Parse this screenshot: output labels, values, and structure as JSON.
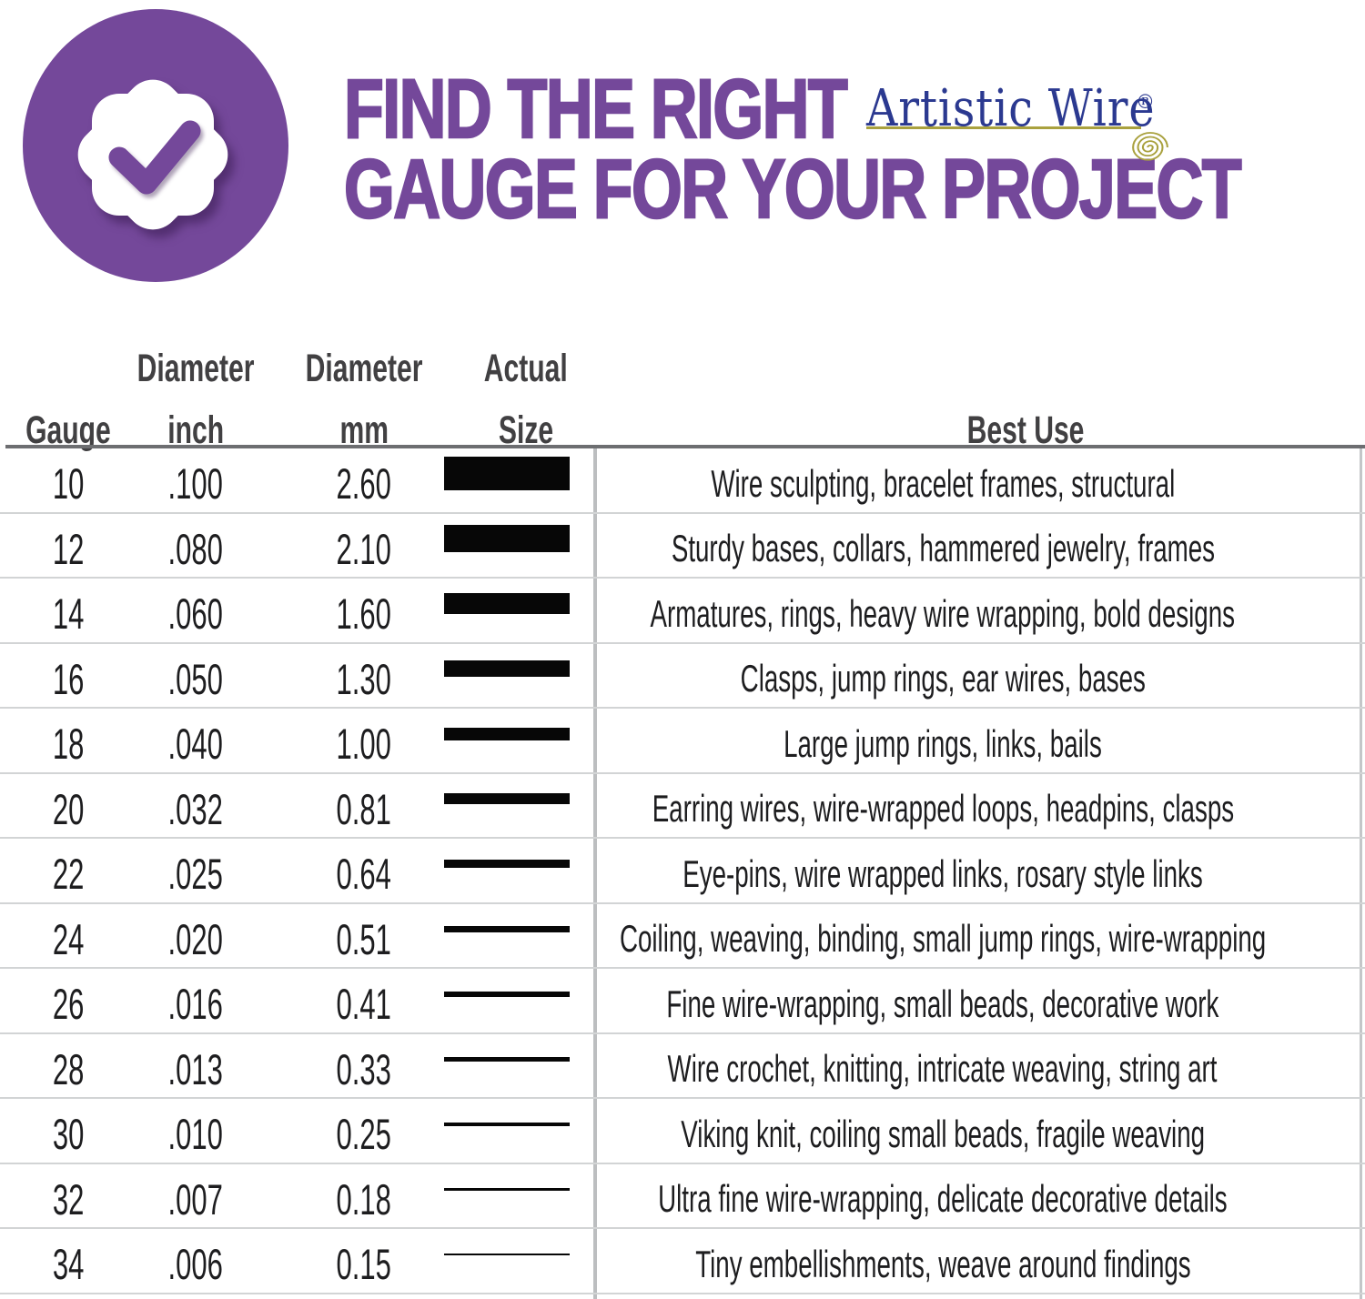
{
  "header": {
    "title_line1": "FIND THE RIGHT",
    "title_line2": "GAUGE FOR YOUR PROJECT",
    "brand_name": "Artistic Wire",
    "brand_registered": "®",
    "badge_icon": "check-seal-icon",
    "spiral_icon": "wire-spiral-icon"
  },
  "colors": {
    "accent_purple": "#74489A",
    "badge_shadow": "#371A4E",
    "brand_navy": "#2B3990",
    "brand_gold": "#A9A13E",
    "bar_black": "#070707",
    "header_text": "#414042",
    "body_text": "#1d1d1f",
    "rule_dark": "#6d6e71",
    "rule_light": "#d2d4d5",
    "column_divider": "#bcbec0"
  },
  "table": {
    "header_row1": {
      "inch": "Diameter",
      "mm": "Diameter",
      "size": "Actual"
    },
    "header_row2": {
      "gauge": "Gauge",
      "inch": "inch",
      "mm": "mm",
      "size": "Size",
      "best_use": "Best Use"
    }
  },
  "chart_data": {
    "type": "table",
    "title": "Find the Right Gauge for Your Project",
    "columns": [
      "Gauge",
      "Diameter inch",
      "Diameter mm",
      "Actual Size",
      "Best Use"
    ],
    "size_bar_note": "Actual Size column shows a solid black bar whose thickness is proportional to the wire diameter in mm (approx 14.2 px per mm), constant width",
    "rows": [
      {
        "gauge": "10",
        "inch": ".100",
        "mm": "2.60",
        "mm_value": 2.6,
        "best_use": "Wire sculpting, bracelet frames, structural"
      },
      {
        "gauge": "12",
        "inch": ".080",
        "mm": "2.10",
        "mm_value": 2.1,
        "best_use": "Sturdy bases, collars, hammered jewelry, frames"
      },
      {
        "gauge": "14",
        "inch": ".060",
        "mm": "1.60",
        "mm_value": 1.6,
        "best_use": "Armatures, rings, heavy wire wrapping, bold designs"
      },
      {
        "gauge": "16",
        "inch": ".050",
        "mm": "1.30",
        "mm_value": 1.3,
        "best_use": "Clasps, jump rings, ear wires, bases"
      },
      {
        "gauge": "18",
        "inch": ".040",
        "mm": "1.00",
        "mm_value": 1.0,
        "best_use": "Large jump rings, links, bails"
      },
      {
        "gauge": "20",
        "inch": ".032",
        "mm": "0.81",
        "mm_value": 0.81,
        "best_use": "Earring wires, wire-wrapped loops, headpins, clasps"
      },
      {
        "gauge": "22",
        "inch": ".025",
        "mm": "0.64",
        "mm_value": 0.64,
        "best_use": "Eye-pins, wire wrapped links, rosary style links"
      },
      {
        "gauge": "24",
        "inch": ".020",
        "mm": "0.51",
        "mm_value": 0.51,
        "best_use": "Coiling, weaving, binding, small jump rings, wire-wrapping"
      },
      {
        "gauge": "26",
        "inch": ".016",
        "mm": "0.41",
        "mm_value": 0.41,
        "best_use": "Fine wire-wrapping, small beads, decorative work"
      },
      {
        "gauge": "28",
        "inch": ".013",
        "mm": "0.33",
        "mm_value": 0.33,
        "best_use": "Wire crochet, knitting, intricate weaving, string art"
      },
      {
        "gauge": "30",
        "inch": ".010",
        "mm": "0.25",
        "mm_value": 0.25,
        "best_use": "Viking knit, coiling small beads, fragile weaving"
      },
      {
        "gauge": "32",
        "inch": ".007",
        "mm": "0.18",
        "mm_value": 0.18,
        "best_use": "Ultra fine wire-wrapping, delicate decorative details"
      },
      {
        "gauge": "34",
        "inch": ".006",
        "mm": "0.15",
        "mm_value": 0.15,
        "best_use": "Tiny embellishments, weave around findings"
      }
    ]
  }
}
